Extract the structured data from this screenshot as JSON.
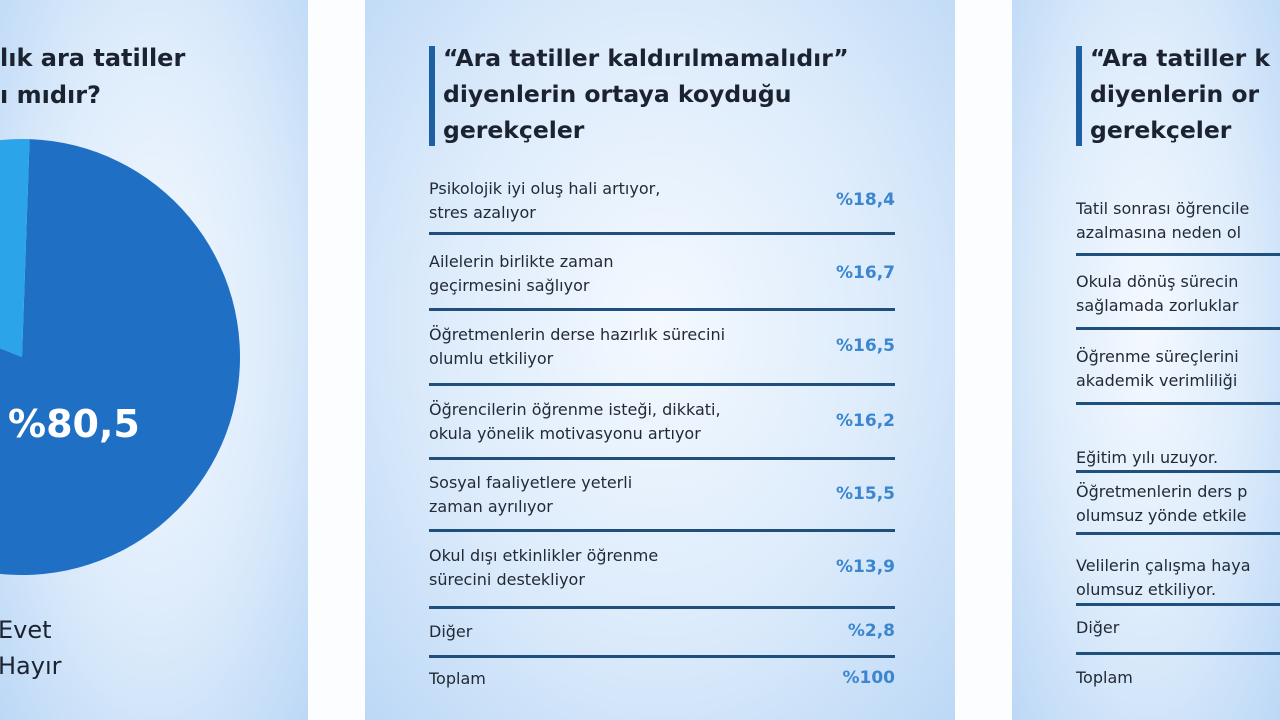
{
  "left_panel": {
    "question_lines": [
      "lık ara tatiller",
      "ı mıdır?"
    ],
    "legend": [
      "Evet",
      "Hayır"
    ],
    "chart_data": {
      "type": "pie",
      "categories": [
        "Evet",
        "Hayır"
      ],
      "values": [
        80.5,
        19.5
      ],
      "data_labels": [
        "%80,5"
      ],
      "colors": {
        "Evet": "#1f6fc4",
        "Hayır": "#2ba4ea"
      }
    }
  },
  "middle_panel": {
    "title_lines": [
      "“Ara tatiller kaldırılmamalıdır”",
      "diyenlerin ortaya koyduğu",
      "gerekçeler"
    ],
    "rows": [
      {
        "text": [
          "Psikolojik iyi oluş hali artıyor,",
          "stres azalıyor"
        ],
        "value": "%18,4"
      },
      {
        "text": [
          "Ailelerin birlikte zaman",
          "geçirmesini sağlıyor"
        ],
        "value": "%16,7"
      },
      {
        "text": [
          "Öğretmenlerin derse hazırlık sürecini",
          "olumlu etkiliyor"
        ],
        "value": "%16,5"
      },
      {
        "text": [
          "Öğrencilerin öğrenme isteği, dikkati,",
          "okula yönelik motivasyonu artıyor"
        ],
        "value": "%16,2"
      },
      {
        "text": [
          "Sosyal faaliyetlere yeterli",
          "zaman ayrılıyor"
        ],
        "value": "%15,5"
      },
      {
        "text": [
          "Okul dışı etkinlikler öğrenme",
          "sürecini destekliyor"
        ],
        "value": "%13,9"
      },
      {
        "text": [
          "Diğer"
        ],
        "value": "%2,8"
      },
      {
        "text": [
          "Toplam"
        ],
        "value": "%100"
      }
    ]
  },
  "right_panel": {
    "title_lines": [
      "“Ara tatiller k",
      "diyenlerin or",
      "gerekçeler"
    ],
    "rows": [
      {
        "text": [
          "Tatil sonrası öğrencile",
          "azalmasına neden ol"
        ]
      },
      {
        "text": [
          "Okula dönüş sürecin",
          "sağlamada zorluklar"
        ]
      },
      {
        "text": [
          "Öğrenme süreçlerini",
          "akademik verimliliği"
        ]
      },
      {
        "text": [
          "Eğitim yılı uzuyor."
        ]
      },
      {
        "text": [
          "Öğretmenlerin ders p",
          "olumsuz yönde etkile"
        ]
      },
      {
        "text": [
          "Velilerin çalışma haya",
          "olumsuz etkiliyor."
        ]
      },
      {
        "text": [
          "Diğer"
        ]
      },
      {
        "text": [
          "Toplam"
        ]
      }
    ]
  },
  "colors": {
    "accent": "#1d5fa3",
    "value": "#3b86cf",
    "divider": "#1f4f7c"
  }
}
